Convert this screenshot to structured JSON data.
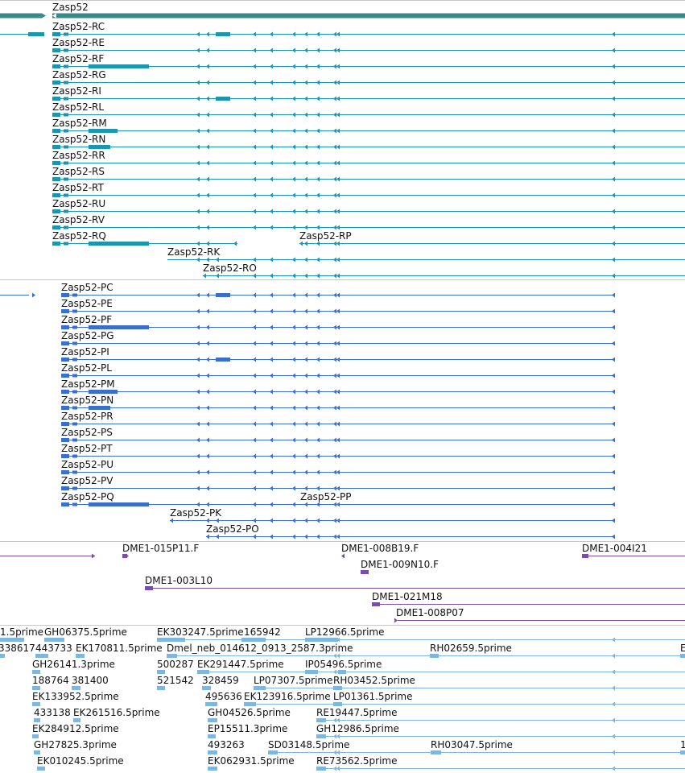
{
  "colors": {
    "gene": "#3a8a8a",
    "transcript_rc": "#1b96ae",
    "transcript_pc": "#3a6fce",
    "clone": "#7a4ea8",
    "est": "#7fb6db",
    "separator": "#c8c8c8"
  },
  "gene_track": {
    "label": "Zasp52"
  },
  "rc_track": {
    "labels": [
      "Zasp52-RC",
      "Zasp52-RE",
      "Zasp52-RF",
      "Zasp52-RG",
      "Zasp52-RI",
      "Zasp52-RL",
      "Zasp52-RM",
      "Zasp52-RN",
      "Zasp52-RR",
      "Zasp52-RS",
      "Zasp52-RT",
      "Zasp52-RU",
      "Zasp52-RV",
      "Zasp52-RQ",
      "Zasp52-RP",
      "Zasp52-RK",
      "Zasp52-RO"
    ]
  },
  "pc_track": {
    "labels": [
      "Zasp52-PC",
      "Zasp52-PE",
      "Zasp52-PF",
      "Zasp52-PG",
      "Zasp52-PI",
      "Zasp52-PL",
      "Zasp52-PM",
      "Zasp52-PN",
      "Zasp52-PR",
      "Zasp52-PS",
      "Zasp52-PT",
      "Zasp52-PU",
      "Zasp52-PV",
      "Zasp52-PQ",
      "Zasp52-PP",
      "Zasp52-PK",
      "Zasp52-PO"
    ]
  },
  "clone_track": {
    "labels": [
      "DME1-015P11.F",
      "DME1-008B19.F",
      "DME1-004I21",
      "DME1-009N10.F",
      "DME1-003L10",
      "DME1-021M18",
      "DME1-008P07"
    ]
  },
  "est_track": {
    "labels": [
      "1.5prime",
      "GH06375.5prime",
      "EK303247.5prime",
      "165942",
      "LP12966.5prime",
      "338617",
      "443733",
      "EK170811.5prime",
      "Dmel_neb_014612_0913_2587.3prime",
      "RH02659.5prime",
      "E",
      "GH26141.3prime",
      "500287",
      "EK291447.5prime",
      "IP05496.5prime",
      "188764",
      "381400",
      "521542",
      "328459",
      "LP07307.5prime",
      "RH03452.5prime",
      "EK133952.5prime",
      "495636",
      "EK123916.5prime",
      "LP01361.5prime",
      "433138",
      "EK261516.5prime",
      "GH04526.5prime",
      "RE19447.5prime",
      "EK284912.5prime",
      "EP15511.3prime",
      "GH12986.5prime",
      "GH27825.3prime",
      "493263",
      "SD03148.5prime",
      "RH03047.5prime",
      "1",
      "EK010245.5prime",
      "EK062931.5prime",
      "RE73562.5prime"
    ]
  }
}
